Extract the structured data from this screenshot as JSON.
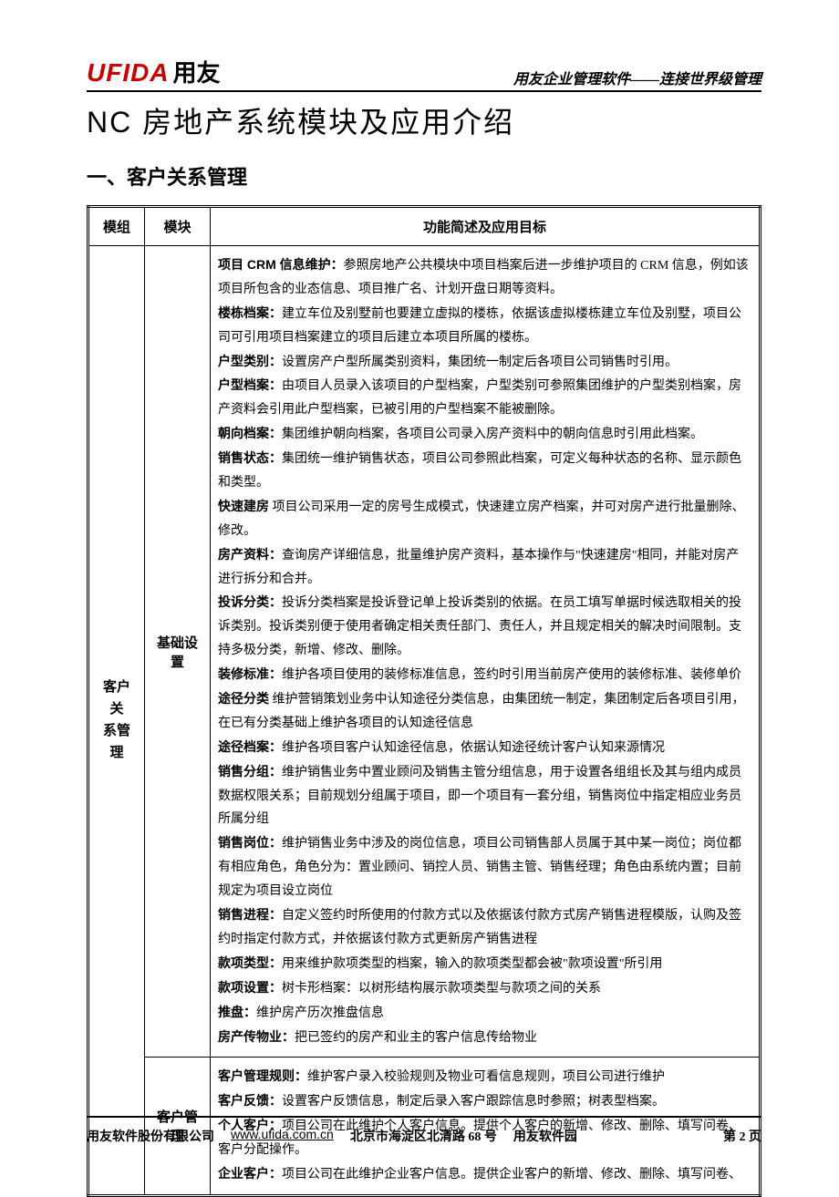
{
  "header": {
    "logo_ufida": "UFIDA",
    "logo_yongyou": "用友",
    "tagline": "用友企业管理软件——连接世界级管理"
  },
  "main_title": "NC 房地产系统模块及应用介绍",
  "section_title": "一、客户关系管理",
  "table": {
    "columns": [
      "模组",
      "模块",
      "功能简述及应用目标"
    ],
    "module_group": "客户关\n系管理",
    "rows": [
      {
        "module": "基础设置",
        "items": [
          {
            "label": "项目 CRM 信息维护：",
            "text": "参照房地产公共模块中项目档案后进一步维护项目的 CRM 信息，例如该项目所包含的业态信息、项目推广名、计划开盘日期等资料。"
          },
          {
            "label": "楼栋档案：",
            "text": "建立车位及别墅前也要建立虚拟的楼栋，依据该虚拟楼栋建立车位及别墅，项目公司可引用项目档案建立的项目后建立本项目所属的楼栋。"
          },
          {
            "label": "户型类别：",
            "text": "设置房产户型所属类别资料，集团统一制定后各项目公司销售时引用。"
          },
          {
            "label": "户型档案：",
            "text": "由项目人员录入该项目的户型档案，户型类别可参照集团维护的户型类别档案，房产资料会引用此户型档案，已被引用的户型档案不能被删除。"
          },
          {
            "label": "朝向档案：",
            "text": "集团维护朝向档案，各项目公司录入房产资料中的朝向信息时引用此档案。"
          },
          {
            "label": "销售状态：",
            "text": "集团统一维护销售状态，项目公司参照此档案，可定义每种状态的名称、显示颜色和类型。"
          },
          {
            "label": "快速建房",
            "text": " 项目公司采用一定的房号生成模式，快速建立房产档案，并可对房产进行批量删除、修改。"
          },
          {
            "label": "房产资料：",
            "text": "查询房产详细信息，批量维护房产资料，基本操作与\"快速建房\"相同，并能对房产进行拆分和合并。"
          },
          {
            "label": "投诉分类：",
            "text": "投诉分类档案是投诉登记单上投诉类别的依据。在员工填写单据时候选取相关的投诉类别。投诉类别便于使用者确定相关责任部门、责任人，并且规定相关的解决时间限制。支持多极分类，新增、修改、删除。"
          },
          {
            "label": "装修标准：",
            "text": "维护各项目使用的装修标准信息，签约时引用当前房产使用的装修标准、装修单价"
          },
          {
            "label": "途径分类",
            "text": " 维护营销策划业务中认知途径分类信息，由集团统一制定，集团制定后各项目引用，在已有分类基础上维护各项目的认知途径信息"
          },
          {
            "label": "途径档案：",
            "text": "维护各项目客户认知途径信息，依据认知途径统计客户认知来源情况"
          },
          {
            "label": "销售分组：",
            "text": "维护销售业务中置业顾问及销售主管分组信息，用于设置各组组长及其与组内成员数据权限关系；目前规划分组属于项目，即一个项目有一套分组，销售岗位中指定相应业务员所属分组"
          },
          {
            "label": "销售岗位：",
            "text": "维护销售业务中涉及的岗位信息，项目公司销售部人员属于其中某一岗位；岗位都有相应角色，角色分为：置业顾问、销控人员、销售主管、销售经理；角色由系统内置；目前规定为项目设立岗位"
          },
          {
            "label": "销售进程：",
            "text": "自定义签约时所使用的付款方式以及依据该付款方式房产销售进程模版，认购及签约时指定付款方式，并依据该付款方式更新房产销售进程"
          },
          {
            "label": "款项类型：",
            "text": "用来维护款项类型的档案，输入的款项类型都会被\"款项设置\"所引用"
          },
          {
            "label": "款项设置：",
            "text": "树卡形档案：以树形结构展示款项类型与款项之间的关系"
          },
          {
            "label": "推盘：",
            "text": "维护房产历次推盘信息"
          },
          {
            "label": "房产传物业：",
            "text": "把已签约的房产和业主的客户信息传给物业"
          }
        ]
      },
      {
        "module": "客户管理",
        "items": [
          {
            "label": "客户管理规则：",
            "text": "维护客户录入校验规则及物业可看信息规则，项目公司进行维护"
          },
          {
            "label": "客户反馈：",
            "text": "设置客户反馈信息，制定后录入客户跟踪信息时参照；树表型档案。"
          },
          {
            "label": "个人客户：",
            "text": "项目公司在此维护个人客户信息。提供个人客户的新增、修改、删除、填写问卷、客户分配操作。"
          },
          {
            "label": "企业客户：",
            "text": "项目公司在此维护企业客户信息。提供企业客户的新增、修改、删除、填写问卷、"
          }
        ]
      }
    ]
  },
  "footer": {
    "company": "用友软件股份有限公司",
    "url": "www.ufida.com.cn",
    "address": "北京市海淀区北清路 68 号",
    "park": "用友软件园",
    "page": "第 2 页"
  }
}
